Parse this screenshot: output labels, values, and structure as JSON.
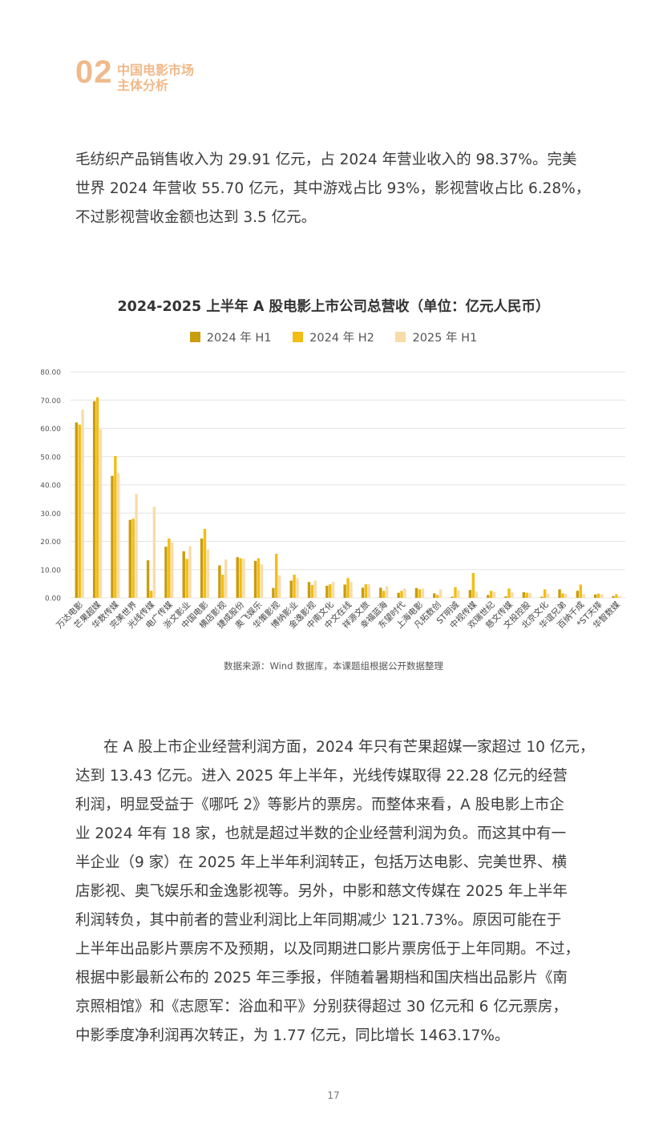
{
  "section": {
    "number": "02",
    "title_line1": "中国电影市场",
    "title_line2": "主体分析"
  },
  "paragraph1": {
    "lines": [
      "毛纺织产品销售收入为 29.91 亿元，占 2024 年营业收入的 98.37%。完美",
      "世界 2024 年营收 55.70 亿元，其中游戏占比 93%，影视营收占比 6.28%，",
      "不过影视营收金额也达到 3.5 亿元。"
    ]
  },
  "colors": {
    "h1_2024": "#c99d0e",
    "h2_2024": "#f3bd12",
    "h1_2025": "#f8dca7",
    "accent": "#f0b98a",
    "grid": "#e4e4e4"
  },
  "chart_data": {
    "type": "bar",
    "title": "2024-2025 上半年 A 股电影上市公司总营收（单位：亿元人民币）",
    "ylim": [
      0,
      80
    ],
    "yticks": [
      "0.00",
      "10.00",
      "20.00",
      "30.00",
      "40.00",
      "50.00",
      "60.00",
      "70.00",
      "80.00"
    ],
    "grid": true,
    "legend_position": "top",
    "categories": [
      "万达电影",
      "芒果超媒",
      "华数传媒",
      "完美世界",
      "光线传媒",
      "电广传媒",
      "浙文影业",
      "中国电影",
      "横店影视",
      "捷成股份",
      "奥飞娱乐",
      "华策影视",
      "博纳影业",
      "金逸影视",
      "中南文化",
      "中文在线",
      "祥源文旅",
      "幸福蓝海",
      "东望时代",
      "上海电影",
      "凡拓数创",
      "ST明诚",
      "中视传媒",
      "欢瑞世纪",
      "慈文传媒",
      "文投控股",
      "北京文化",
      "华谊兄弟",
      "百纳千成",
      "*ST天择",
      "华智数媒"
    ],
    "series": [
      {
        "name": "2024 年 H1",
        "values": [
          62.1,
          69.6,
          43.2,
          27.6,
          13.3,
          18.1,
          16.5,
          21.0,
          11.5,
          14.4,
          13.1,
          3.5,
          6.1,
          5.6,
          4.3,
          4.7,
          3.6,
          3.6,
          1.8,
          3.5,
          1.6,
          0.4,
          2.8,
          1.0,
          0.5,
          2.0,
          0.4,
          3.0,
          2.5,
          1.2,
          0.6
        ]
      },
      {
        "name": "2024 年 H2",
        "values": [
          61.3,
          71.0,
          50.2,
          28.0,
          2.5,
          21.0,
          13.8,
          24.4,
          8.2,
          14.0,
          14.0,
          15.6,
          8.2,
          4.5,
          4.8,
          7.0,
          4.8,
          2.5,
          2.5,
          3.0,
          1.0,
          3.8,
          8.8,
          2.5,
          3.3,
          1.8,
          3.0,
          1.6,
          4.7,
          1.5,
          1.3
        ]
      },
      {
        "name": "2025 年 H1",
        "values": [
          66.6,
          59.7,
          44.1,
          36.8,
          32.3,
          19.6,
          18.3,
          17.1,
          13.6,
          13.8,
          11.9,
          7.9,
          7.0,
          6.1,
          5.7,
          5.6,
          4.8,
          4.1,
          3.3,
          3.3,
          3.0,
          2.7,
          2.2,
          2.0,
          2.0,
          1.7,
          1.5,
          1.4,
          1.3,
          1.2,
          0.6
        ]
      }
    ]
  },
  "source_note": "数据来源：Wind 数据库，本课题组根据公开数据整理",
  "paragraph2": {
    "lines": [
      "在 A 股上市企业经营利润方面，2024 年只有芒果超媒一家超过 10 亿元，",
      "达到 13.43 亿元。进入 2025 年上半年，光线传媒取得 22.28 亿元的经营",
      "利润，明显受益于《哪吒 2》等影片的票房。而整体来看，A 股电影上市企",
      "业 2024 年有 18 家，也就是超过半数的企业经营利润为负。而这其中有一",
      "半企业（9 家）在 2025 年上半年利润转正，包括万达电影、完美世界、横",
      "店影视、奥飞娱乐和金逸影视等。另外，中影和慈文传媒在 2025 年上半年",
      "利润转负，其中前者的营业利润比上年同期减少 121.73%。原因可能在于",
      "上半年出品影片票房不及预期，以及同期进口影片票房低于上年同期。不过，",
      "根据中影最新公布的 2025 年三季报，伴随着暑期档和国庆档出品影片《南",
      "京照相馆》和《志愿军：浴血和平》分别获得超过 30 亿元和 6 亿元票房，",
      "中影季度净利润再次转正，为 1.77 亿元，同比增长 1463.17%。"
    ]
  },
  "page_number": "17"
}
